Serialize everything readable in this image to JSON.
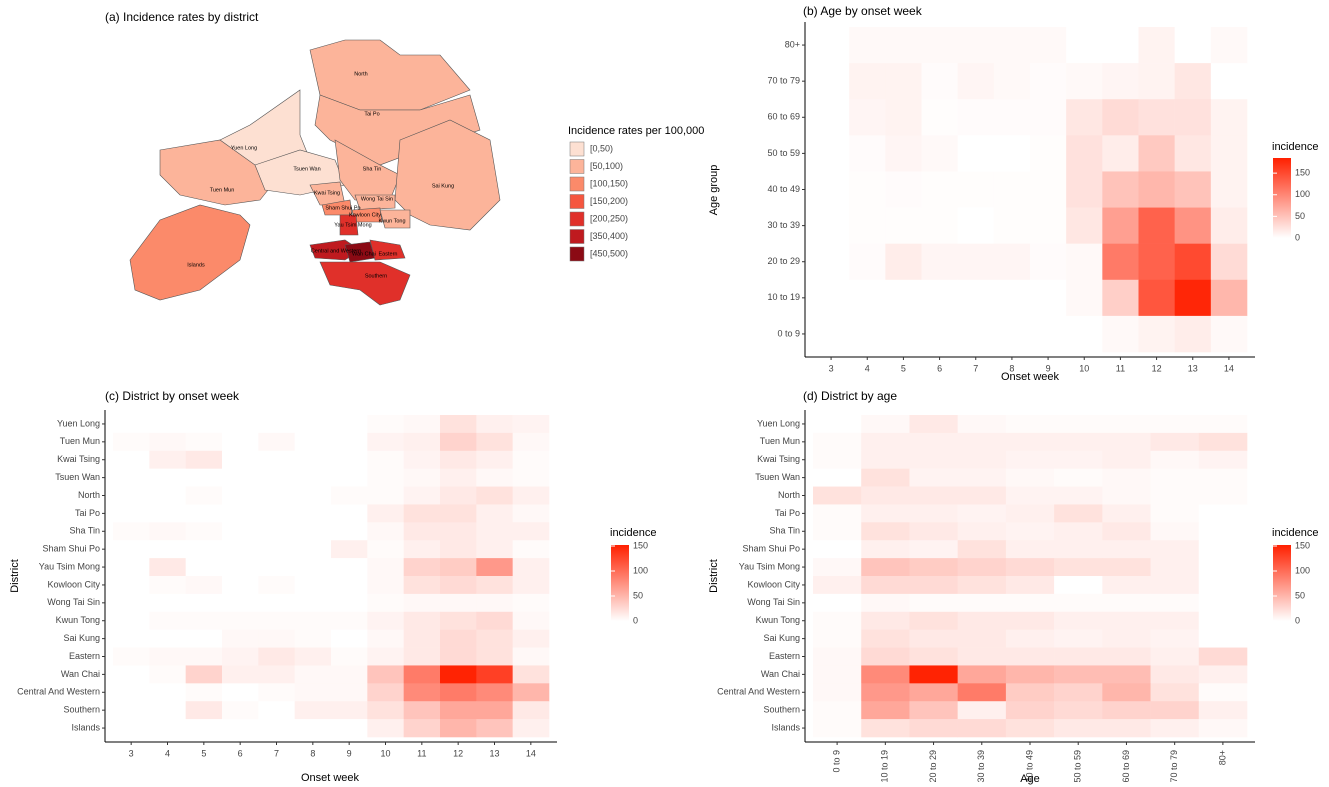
{
  "chart_data": [
    {
      "type": "choropleth",
      "title": "(a) Incidence rates by district",
      "legend_title": "Incidence rates per 100,000",
      "bins": [
        {
          "label": "[0,50)",
          "color": "#FDE0D2"
        },
        {
          "label": "[50,100)",
          "color": "#FCB49A"
        },
        {
          "label": "[100,150)",
          "color": "#FB8A6A"
        },
        {
          "label": "[150,200)",
          "color": "#F5563F"
        },
        {
          "label": "[200,250)",
          "color": "#E0302A"
        },
        {
          "label": "[350,400)",
          "color": "#BF1A1F"
        },
        {
          "label": "[450,500)",
          "color": "#8B0A14"
        }
      ],
      "regions": [
        {
          "name": "Yuen Long",
          "bin": "[0,50)"
        },
        {
          "name": "Tuen Mun",
          "bin": "[50,100)"
        },
        {
          "name": "North",
          "bin": "[50,100)"
        },
        {
          "name": "Tai Po",
          "bin": "[50,100)"
        },
        {
          "name": "Tsuen Wan",
          "bin": "[0,50)"
        },
        {
          "name": "Sha Tin",
          "bin": "[50,100)"
        },
        {
          "name": "Sai Kung",
          "bin": "[50,100)"
        },
        {
          "name": "Kwai Tsing",
          "bin": "[50,100)"
        },
        {
          "name": "Sham Shui Po",
          "bin": "[100,150)"
        },
        {
          "name": "Wong Tai Sin",
          "bin": "[50,100)"
        },
        {
          "name": "Kowloon City",
          "bin": "[100,150)"
        },
        {
          "name": "Kwun Tong",
          "bin": "[50,100)"
        },
        {
          "name": "Yau Tsim Mong",
          "bin": "[200,250)"
        },
        {
          "name": "Islands",
          "bin": "[100,150)"
        },
        {
          "name": "Central and Western",
          "bin": "[350,400)"
        },
        {
          "name": "Wan Chai",
          "bin": "[450,500)"
        },
        {
          "name": "Eastern",
          "bin": "[200,250)"
        },
        {
          "name": "Southern",
          "bin": "[200,250)"
        }
      ]
    },
    {
      "type": "heatmap",
      "title": "(b) Age by onset week",
      "x_label": "Onset week",
      "y_label": "Age group",
      "legend_title": "incidence",
      "x_categories": [
        3,
        4,
        5,
        6,
        7,
        8,
        9,
        10,
        11,
        12,
        13,
        14
      ],
      "y_categories": [
        "80+",
        "70 to 79",
        "60 to 69",
        "50 to 59",
        "40 to 49",
        "30 to 39",
        "20 to 29",
        "10 to 19",
        "0 to 9"
      ],
      "values": [
        [
          0,
          5,
          5,
          5,
          5,
          5,
          5,
          0,
          0,
          10,
          0,
          5
        ],
        [
          0,
          10,
          10,
          3,
          8,
          5,
          3,
          5,
          8,
          10,
          20,
          0
        ],
        [
          0,
          8,
          10,
          2,
          3,
          3,
          3,
          20,
          30,
          25,
          25,
          10
        ],
        [
          0,
          3,
          8,
          5,
          0,
          0,
          2,
          25,
          15,
          45,
          20,
          10
        ],
        [
          0,
          2,
          3,
          2,
          2,
          2,
          2,
          25,
          50,
          60,
          50,
          10
        ],
        [
          0,
          2,
          2,
          2,
          0,
          2,
          2,
          20,
          80,
          130,
          90,
          15
        ],
        [
          0,
          3,
          15,
          8,
          8,
          8,
          3,
          5,
          110,
          130,
          150,
          30
        ],
        [
          0,
          0,
          0,
          0,
          0,
          0,
          0,
          5,
          40,
          140,
          180,
          60
        ],
        [
          0,
          0,
          0,
          0,
          0,
          0,
          0,
          0,
          5,
          10,
          15,
          5
        ]
      ],
      "clim": [
        0,
        185
      ],
      "cticks": [
        0,
        50,
        100,
        150
      ],
      "colors": [
        "#FFFFFF",
        "#FF2000"
      ]
    },
    {
      "type": "heatmap",
      "title": "(c) District by onset week",
      "x_label": "Onset week",
      "y_label": "District",
      "legend_title": "incidence",
      "x_categories": [
        3,
        4,
        5,
        6,
        7,
        8,
        9,
        10,
        11,
        12,
        13,
        14
      ],
      "y_categories": [
        "Yuen Long",
        "Tuen Mun",
        "Kwai Tsing",
        "Tsuen Wan",
        "North",
        "Tai Po",
        "Sha Tin",
        "Sham Shui Po",
        "Yau Tsim Mong",
        "Kowloon City",
        "Wong Tai Sin",
        "Kwun Tong",
        "Sai Kung",
        "Eastern",
        "Wan Chai",
        "Central And Western",
        "Southern",
        "Islands"
      ],
      "values": [
        [
          0,
          0,
          0,
          0,
          0,
          0,
          0,
          3,
          5,
          20,
          10,
          8
        ],
        [
          3,
          5,
          3,
          0,
          5,
          0,
          0,
          8,
          10,
          30,
          20,
          5
        ],
        [
          0,
          10,
          15,
          0,
          0,
          0,
          0,
          3,
          8,
          15,
          10,
          3
        ],
        [
          0,
          0,
          0,
          0,
          0,
          0,
          0,
          3,
          5,
          10,
          5,
          3
        ],
        [
          0,
          0,
          3,
          0,
          0,
          0,
          3,
          3,
          8,
          15,
          20,
          10
        ],
        [
          0,
          0,
          0,
          0,
          0,
          0,
          0,
          10,
          20,
          20,
          10,
          5
        ],
        [
          3,
          5,
          3,
          0,
          0,
          0,
          0,
          5,
          15,
          15,
          10,
          10
        ],
        [
          0,
          0,
          0,
          0,
          0,
          0,
          10,
          3,
          10,
          15,
          10,
          3
        ],
        [
          0,
          15,
          0,
          0,
          0,
          0,
          0,
          5,
          30,
          35,
          70,
          10
        ],
        [
          0,
          3,
          5,
          0,
          3,
          0,
          0,
          5,
          20,
          25,
          20,
          10
        ],
        [
          0,
          0,
          0,
          0,
          0,
          0,
          0,
          3,
          5,
          5,
          5,
          3
        ],
        [
          0,
          3,
          3,
          3,
          3,
          3,
          3,
          8,
          15,
          20,
          25,
          5
        ],
        [
          0,
          0,
          0,
          5,
          5,
          3,
          0,
          5,
          15,
          25,
          20,
          10
        ],
        [
          3,
          5,
          5,
          8,
          15,
          10,
          3,
          8,
          15,
          25,
          20,
          5
        ],
        [
          0,
          3,
          30,
          10,
          10,
          5,
          5,
          40,
          90,
          150,
          130,
          20
        ],
        [
          0,
          0,
          3,
          0,
          3,
          5,
          5,
          30,
          80,
          90,
          80,
          50
        ],
        [
          0,
          0,
          15,
          3,
          0,
          10,
          10,
          20,
          40,
          60,
          60,
          15
        ],
        [
          0,
          0,
          0,
          0,
          0,
          0,
          0,
          10,
          30,
          50,
          40,
          10
        ]
      ],
      "clim": [
        0,
        152
      ],
      "cticks": [
        0,
        50,
        100,
        150
      ],
      "colors": [
        "#FFFFFF",
        "#FF2000"
      ]
    },
    {
      "type": "heatmap",
      "title": "(d) District by age",
      "x_label": "Age",
      "y_label": "District",
      "legend_title": "incidence",
      "x_categories": [
        "0 to 9",
        "10 to 19",
        "20 to 29",
        "30 to 39",
        "40 to 49",
        "50 to 59",
        "60 to 69",
        "70 to 79",
        "80+"
      ],
      "y_categories": [
        "Yuen Long",
        "Tuen Mun",
        "Kwai Tsing",
        "Tsuen Wan",
        "North",
        "Tai Po",
        "Sha Tin",
        "Sham Shui Po",
        "Yau Tsim Mong",
        "Kowloon City",
        "Wong Tai Sin",
        "Kwun Tong",
        "Sai Kung",
        "Eastern",
        "Wan Chai",
        "Central And Western",
        "Southern",
        "Islands"
      ],
      "values": [
        [
          0,
          5,
          15,
          5,
          3,
          3,
          3,
          3,
          3
        ],
        [
          3,
          10,
          10,
          10,
          10,
          10,
          10,
          15,
          20
        ],
        [
          3,
          10,
          10,
          10,
          8,
          8,
          10,
          5,
          8
        ],
        [
          0,
          20,
          8,
          8,
          5,
          3,
          5,
          3,
          3
        ],
        [
          20,
          15,
          15,
          15,
          8,
          8,
          5,
          3,
          3
        ],
        [
          3,
          10,
          10,
          8,
          10,
          20,
          10,
          3,
          0
        ],
        [
          3,
          20,
          15,
          10,
          8,
          10,
          15,
          5,
          0
        ],
        [
          0,
          10,
          8,
          20,
          10,
          10,
          10,
          10,
          0
        ],
        [
          5,
          40,
          35,
          30,
          25,
          20,
          20,
          10,
          0
        ],
        [
          10,
          25,
          25,
          20,
          15,
          0,
          10,
          10,
          0
        ],
        [
          0,
          5,
          3,
          3,
          3,
          3,
          3,
          3,
          0
        ],
        [
          3,
          15,
          20,
          15,
          15,
          10,
          10,
          10,
          0
        ],
        [
          3,
          20,
          15,
          15,
          10,
          8,
          10,
          8,
          0
        ],
        [
          5,
          25,
          20,
          15,
          15,
          15,
          15,
          10,
          25
        ],
        [
          5,
          80,
          150,
          60,
          50,
          45,
          45,
          15,
          10
        ],
        [
          5,
          70,
          60,
          90,
          35,
          30,
          50,
          20,
          3
        ],
        [
          3,
          60,
          40,
          10,
          30,
          25,
          30,
          30,
          10
        ],
        [
          3,
          20,
          25,
          25,
          20,
          15,
          15,
          10,
          5
        ]
      ],
      "clim": [
        0,
        152
      ],
      "cticks": [
        0,
        50,
        100,
        150
      ],
      "colors": [
        "#FFFFFF",
        "#FF2000"
      ]
    }
  ]
}
